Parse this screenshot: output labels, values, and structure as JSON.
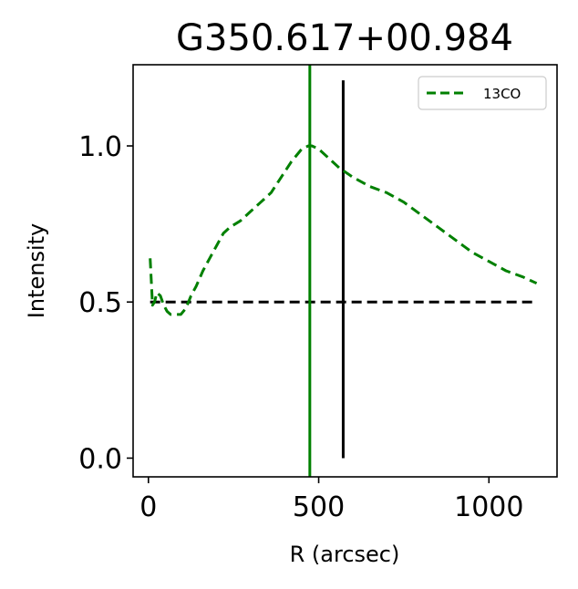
{
  "chart_data": {
    "type": "line",
    "title": "G350.617+00.984",
    "xlabel": "R (arcsec)",
    "ylabel": "Intensity",
    "xlim": [
      -45,
      1200
    ],
    "ylim": [
      -0.06,
      1.26
    ],
    "xticks": [
      0,
      500,
      1000
    ],
    "xtick_labels": [
      "0",
      "500",
      "1000"
    ],
    "yticks": [
      0.0,
      0.5,
      1.0
    ],
    "ytick_labels": [
      "0.0",
      "0.5",
      "1.0"
    ],
    "grid": false,
    "legend_position": "top-right",
    "series": [
      {
        "name": "13CO",
        "color": "#008000",
        "style": "dashed",
        "x": [
          5,
          12,
          18,
          25,
          35,
          45,
          55,
          65,
          80,
          95,
          110,
          125,
          140,
          160,
          180,
          200,
          220,
          240,
          270,
          300,
          330,
          360,
          390,
          420,
          450,
          470,
          480,
          500,
          530,
          560,
          600,
          650,
          700,
          750,
          800,
          850,
          900,
          950,
          1000,
          1050,
          1100,
          1140
        ],
        "y": [
          0.64,
          0.49,
          0.5,
          0.53,
          0.52,
          0.49,
          0.47,
          0.46,
          0.46,
          0.46,
          0.48,
          0.52,
          0.55,
          0.6,
          0.64,
          0.68,
          0.72,
          0.74,
          0.76,
          0.79,
          0.82,
          0.85,
          0.9,
          0.95,
          0.99,
          1.0,
          1.0,
          0.99,
          0.96,
          0.93,
          0.9,
          0.87,
          0.85,
          0.82,
          0.78,
          0.74,
          0.7,
          0.66,
          0.63,
          0.6,
          0.58,
          0.56
        ]
      }
    ],
    "hlines": [
      {
        "y": 0.5,
        "xmin": 5,
        "xmax": 1140,
        "color": "#000000",
        "style": "dashed"
      }
    ],
    "vlines": [
      {
        "x": 474,
        "ymin": -0.06,
        "ymax": 1.26,
        "color": "#008000",
        "style": "solid"
      },
      {
        "x": 572,
        "ymin": 0.0,
        "ymax": 1.21,
        "color": "#000000",
        "style": "solid"
      }
    ]
  }
}
